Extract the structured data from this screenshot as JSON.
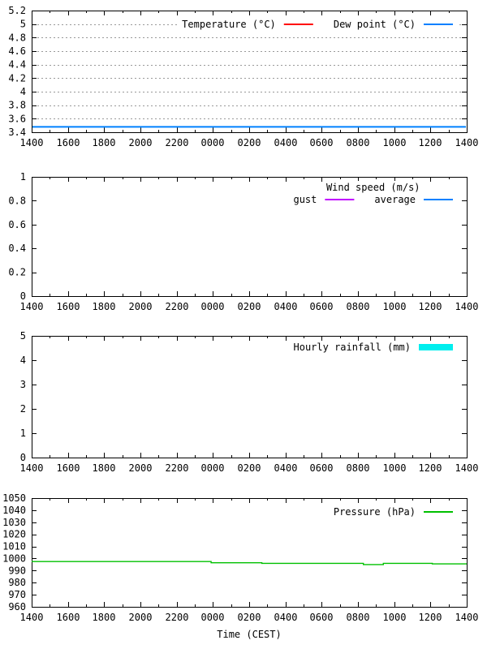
{
  "page": {
    "background": "#ffffff",
    "axis_color": "#000000",
    "grid_color": "#999999",
    "text_color": "#000000"
  },
  "time_axis": {
    "tick_labels": [
      "1400",
      "1600",
      "1800",
      "2000",
      "2200",
      "0000",
      "0200",
      "0400",
      "0600",
      "0800",
      "1000",
      "1200",
      "1400"
    ],
    "minor_ticks_per_major": 1,
    "span_hours": 24,
    "xlabel": "Time (CEST)"
  },
  "chart_data": [
    {
      "type": "line",
      "name": "temperature-dewpoint",
      "title": "",
      "ylim": [
        3.4,
        5.2
      ],
      "ytick_labels": [
        "3.4",
        "3.6",
        "3.8",
        "4",
        "4.2",
        "4.4",
        "4.6",
        "4.8",
        "5",
        "5.2"
      ],
      "grid": true,
      "legend_rows": [
        [
          {
            "label": "Temperature (°C)",
            "color": "#ff0000",
            "sample": "line"
          },
          {
            "label": "Dew point (°C)",
            "color": "#0080ff",
            "sample": "line"
          }
        ]
      ],
      "series": [
        {
          "name": "Temperature (°C)",
          "color": "#ff0000",
          "visible": false,
          "note": "no red line visible; coincides with dew point line"
        },
        {
          "name": "Dew point (°C)",
          "color": "#0080ff",
          "visible": true,
          "constant": 3.48,
          "note": "flat line across entire 24 h span"
        }
      ]
    },
    {
      "type": "line",
      "name": "wind-speed",
      "title": "",
      "ylim": [
        0,
        1
      ],
      "ytick_labels": [
        "0",
        "0.2",
        "0.4",
        "0.6",
        "0.8",
        "1"
      ],
      "grid": false,
      "legend_title": "Wind speed (m/s)",
      "legend_rows": [
        [
          {
            "label": "gust",
            "color": "#c000ff",
            "sample": "line"
          },
          {
            "label": "average",
            "color": "#0080ff",
            "sample": "line"
          }
        ]
      ],
      "series": [
        {
          "name": "gust",
          "color": "#c000ff",
          "visible": false,
          "note": "no data line visible (0 m/s)"
        },
        {
          "name": "average",
          "color": "#0080ff",
          "visible": false,
          "note": "no data line visible (0 m/s)"
        }
      ]
    },
    {
      "type": "bar",
      "name": "hourly-rainfall",
      "title": "",
      "ylim": [
        0,
        5
      ],
      "ytick_labels": [
        "0",
        "1",
        "2",
        "3",
        "4",
        "5"
      ],
      "grid": false,
      "legend_rows": [
        [
          {
            "label": "Hourly rainfall (mm)",
            "color": "#00eeee",
            "sample": "box"
          }
        ]
      ],
      "series": [
        {
          "name": "Hourly rainfall (mm)",
          "color": "#00eeee",
          "visible": false,
          "values": [],
          "note": "no bars visible (0 mm all hours)"
        }
      ]
    },
    {
      "type": "line",
      "name": "pressure",
      "title": "",
      "ylim": [
        960,
        1050
      ],
      "ytick_labels": [
        "960",
        "970",
        "980",
        "990",
        "1000",
        "1010",
        "1020",
        "1030",
        "1040",
        "1050"
      ],
      "grid": false,
      "xlabel": "Time (CEST)",
      "legend_rows": [
        [
          {
            "label": "Pressure (hPa)",
            "color": "#00c000",
            "sample": "line"
          }
        ]
      ],
      "series": [
        {
          "name": "Pressure (hPa)",
          "color": "#00c000",
          "visible": true,
          "end_h": 24,
          "steps": [
            {
              "h": 0.0,
              "v": 997.5
            },
            {
              "h": 9.9,
              "v": 996.5
            },
            {
              "h": 12.7,
              "v": 996.0
            },
            {
              "h": 18.3,
              "v": 995.0
            },
            {
              "h": 19.4,
              "v": 996.0
            },
            {
              "h": 22.1,
              "v": 995.5
            }
          ],
          "note": "slowly falling stepped line, ~997.5 hPa at start to ~995.5 hPa at end"
        }
      ]
    }
  ]
}
